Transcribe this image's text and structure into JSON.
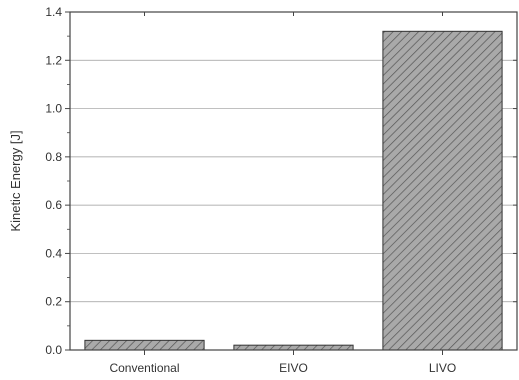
{
  "chart_data": {
    "type": "bar",
    "title": "",
    "xlabel": "",
    "ylabel": "Kinetic Energy [J]",
    "categories": [
      "Conventional",
      "EIVO",
      "LIVO"
    ],
    "values": [
      0.04,
      0.02,
      1.32
    ],
    "ylim": [
      0,
      1.4
    ],
    "yticks": [
      "0.0",
      "0.2",
      "0.4",
      "0.6",
      "0.8",
      "1.0",
      "1.2",
      "1.4"
    ],
    "grid": true,
    "legend": "none",
    "bar_fill": "#a9a9a9",
    "hatch_color": "#555555",
    "axis_color": "#444444",
    "grid_color": "#9a9a9a"
  }
}
